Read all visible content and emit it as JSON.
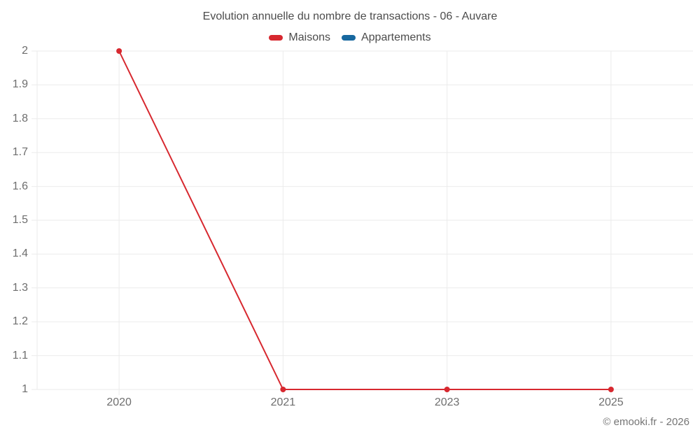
{
  "title": "Evolution annuelle du nombre de transactions - 06 - Auvare",
  "footer": "© emooki.fr - 2026",
  "colors": {
    "maisons_red": "#d7282f",
    "appartements_blue": "#17689f",
    "grid": "#ebebeb",
    "axis_text": "#6e6e6e",
    "title_text": "#4c4c4c",
    "footer_text": "#757575"
  },
  "chart_data": {
    "type": "line",
    "title": "Evolution annuelle du nombre de transactions - 06 - Auvare",
    "categories": [
      "2020",
      "2021",
      "2023",
      "2025"
    ],
    "series": [
      {
        "name": "Maisons",
        "color": "#d7282f",
        "values": [
          2,
          1,
          1,
          1
        ]
      },
      {
        "name": "Appartements",
        "color": "#17689f",
        "values": []
      }
    ],
    "xlabel": "",
    "ylabel": "",
    "ylim": [
      1,
      2
    ],
    "y_ticks": [
      "2",
      "1.9",
      "1.8",
      "1.7",
      "1.6",
      "1.5",
      "1.4",
      "1.3",
      "1.2",
      "1.1",
      "1"
    ],
    "grid": true,
    "legend_position": "top",
    "marker": "circle",
    "annotations": []
  }
}
